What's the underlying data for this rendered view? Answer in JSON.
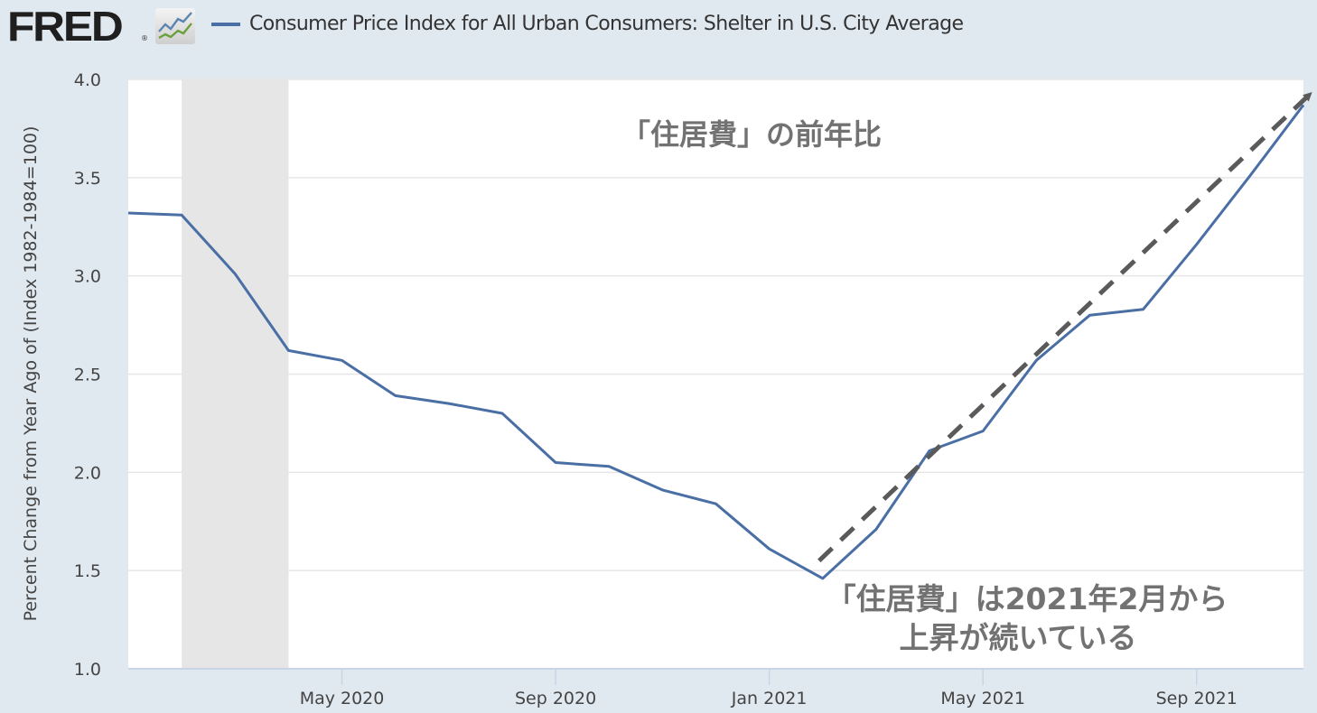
{
  "header": {
    "logo_text": "FRED",
    "logo_registered": "®",
    "logo_icon": "line-chart-icon",
    "legend_label": "Consumer Price Index for All Urban Consumers: Shelter in U.S. City Average",
    "legend_color": "#4a6fa5"
  },
  "chart_data": {
    "type": "line",
    "title": "",
    "xlabel": "",
    "ylabel": "Percent Change from Year Ago of (Index 1982-1984=100)",
    "ylim": [
      1.0,
      4.0
    ],
    "yticks": [
      {
        "label": "4.0",
        "value": 4.0
      },
      {
        "label": "3.5",
        "value": 3.5
      },
      {
        "label": "3.0",
        "value": 3.0
      },
      {
        "label": "2.5",
        "value": 2.5
      },
      {
        "label": "2.0",
        "value": 2.0
      },
      {
        "label": "1.5",
        "value": 1.5
      },
      {
        "label": "1.0",
        "value": 1.0
      }
    ],
    "xlim": [
      "2020-01",
      "2021-11"
    ],
    "xticks": [
      {
        "label": "May 2020",
        "month_index": 4
      },
      {
        "label": "Sep 2020",
        "month_index": 8
      },
      {
        "label": "Jan 2021",
        "month_index": 12
      },
      {
        "label": "May 2021",
        "month_index": 16
      },
      {
        "label": "Sep 2021",
        "month_index": 20
      }
    ],
    "grid": "horizontal",
    "legend_position": "top",
    "recession_shading": {
      "start_month_index": 1,
      "end_month_index": 3,
      "color": "#e6e6e6"
    },
    "series": [
      {
        "name": "Consumer Price Index for All Urban Consumers: Shelter in U.S. City Average",
        "color": "#4a6fa5",
        "x": [
          "2020-01",
          "2020-02",
          "2020-03",
          "2020-04",
          "2020-05",
          "2020-06",
          "2020-07",
          "2020-08",
          "2020-09",
          "2020-10",
          "2020-11",
          "2020-12",
          "2021-01",
          "2021-02",
          "2021-03",
          "2021-04",
          "2021-05",
          "2021-06",
          "2021-07",
          "2021-08",
          "2021-09",
          "2021-10",
          "2021-11"
        ],
        "values": [
          3.32,
          3.31,
          3.01,
          2.62,
          2.57,
          2.39,
          2.35,
          2.3,
          2.05,
          2.03,
          1.91,
          1.84,
          1.61,
          1.46,
          1.71,
          2.11,
          2.21,
          2.57,
          2.8,
          2.83,
          3.16,
          3.51,
          3.87
        ]
      }
    ],
    "annotations": [
      {
        "text": "「住居費」の前年比",
        "type": "label"
      },
      {
        "text_lines": [
          "「住居費」は2021年2月から",
          "上昇が続いている"
        ],
        "type": "label"
      },
      {
        "type": "dashed-arrow",
        "from": {
          "month_index": 13,
          "value": 1.55
        },
        "to": {
          "month_index": 22,
          "value": 3.92
        },
        "color": "#5a5a5a"
      }
    ]
  }
}
